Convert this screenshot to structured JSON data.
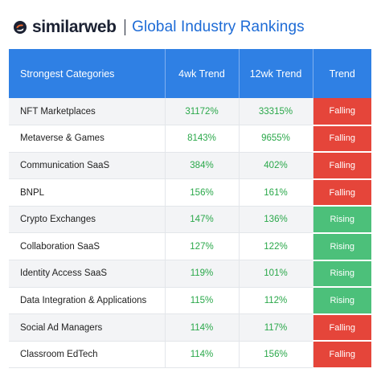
{
  "header": {
    "brand": "similarweb",
    "title": "Global Industry Rankings"
  },
  "colors": {
    "accent": "#2f80e4",
    "title_blue": "#1d6bd6",
    "positive_text": "#2aa84a",
    "falling": "#e5453a",
    "rising": "#4cc07a",
    "logo_orange": "#f26a2e",
    "logo_navy": "#1b2132"
  },
  "icons": {
    "logo": "similarweb-logo-icon"
  },
  "table": {
    "columns": [
      "Strongest Categories",
      "4wk Trend",
      "12wk Trend",
      "Trend"
    ],
    "rows": [
      {
        "category": "NFT Marketplaces",
        "wk4": "31172%",
        "wk12": "33315%",
        "trend": "Falling"
      },
      {
        "category": "Metaverse & Games",
        "wk4": "8143%",
        "wk12": "9655%",
        "trend": "Falling"
      },
      {
        "category": "Communication SaaS",
        "wk4": "384%",
        "wk12": "402%",
        "trend": "Falling"
      },
      {
        "category": "BNPL",
        "wk4": "156%",
        "wk12": "161%",
        "trend": "Falling"
      },
      {
        "category": "Crypto Exchanges",
        "wk4": "147%",
        "wk12": "136%",
        "trend": "Rising"
      },
      {
        "category": "Collaboration SaaS",
        "wk4": "127%",
        "wk12": "122%",
        "trend": "Rising"
      },
      {
        "category": "Identity Access SaaS",
        "wk4": "119%",
        "wk12": "101%",
        "trend": "Rising"
      },
      {
        "category": "Data Integration & Applications",
        "wk4": "115%",
        "wk12": "112%",
        "trend": "Rising"
      },
      {
        "category": "Social Ad Managers",
        "wk4": "114%",
        "wk12": "117%",
        "trend": "Falling"
      },
      {
        "category": "Classroom EdTech",
        "wk4": "114%",
        "wk12": "156%",
        "trend": "Falling"
      }
    ]
  }
}
